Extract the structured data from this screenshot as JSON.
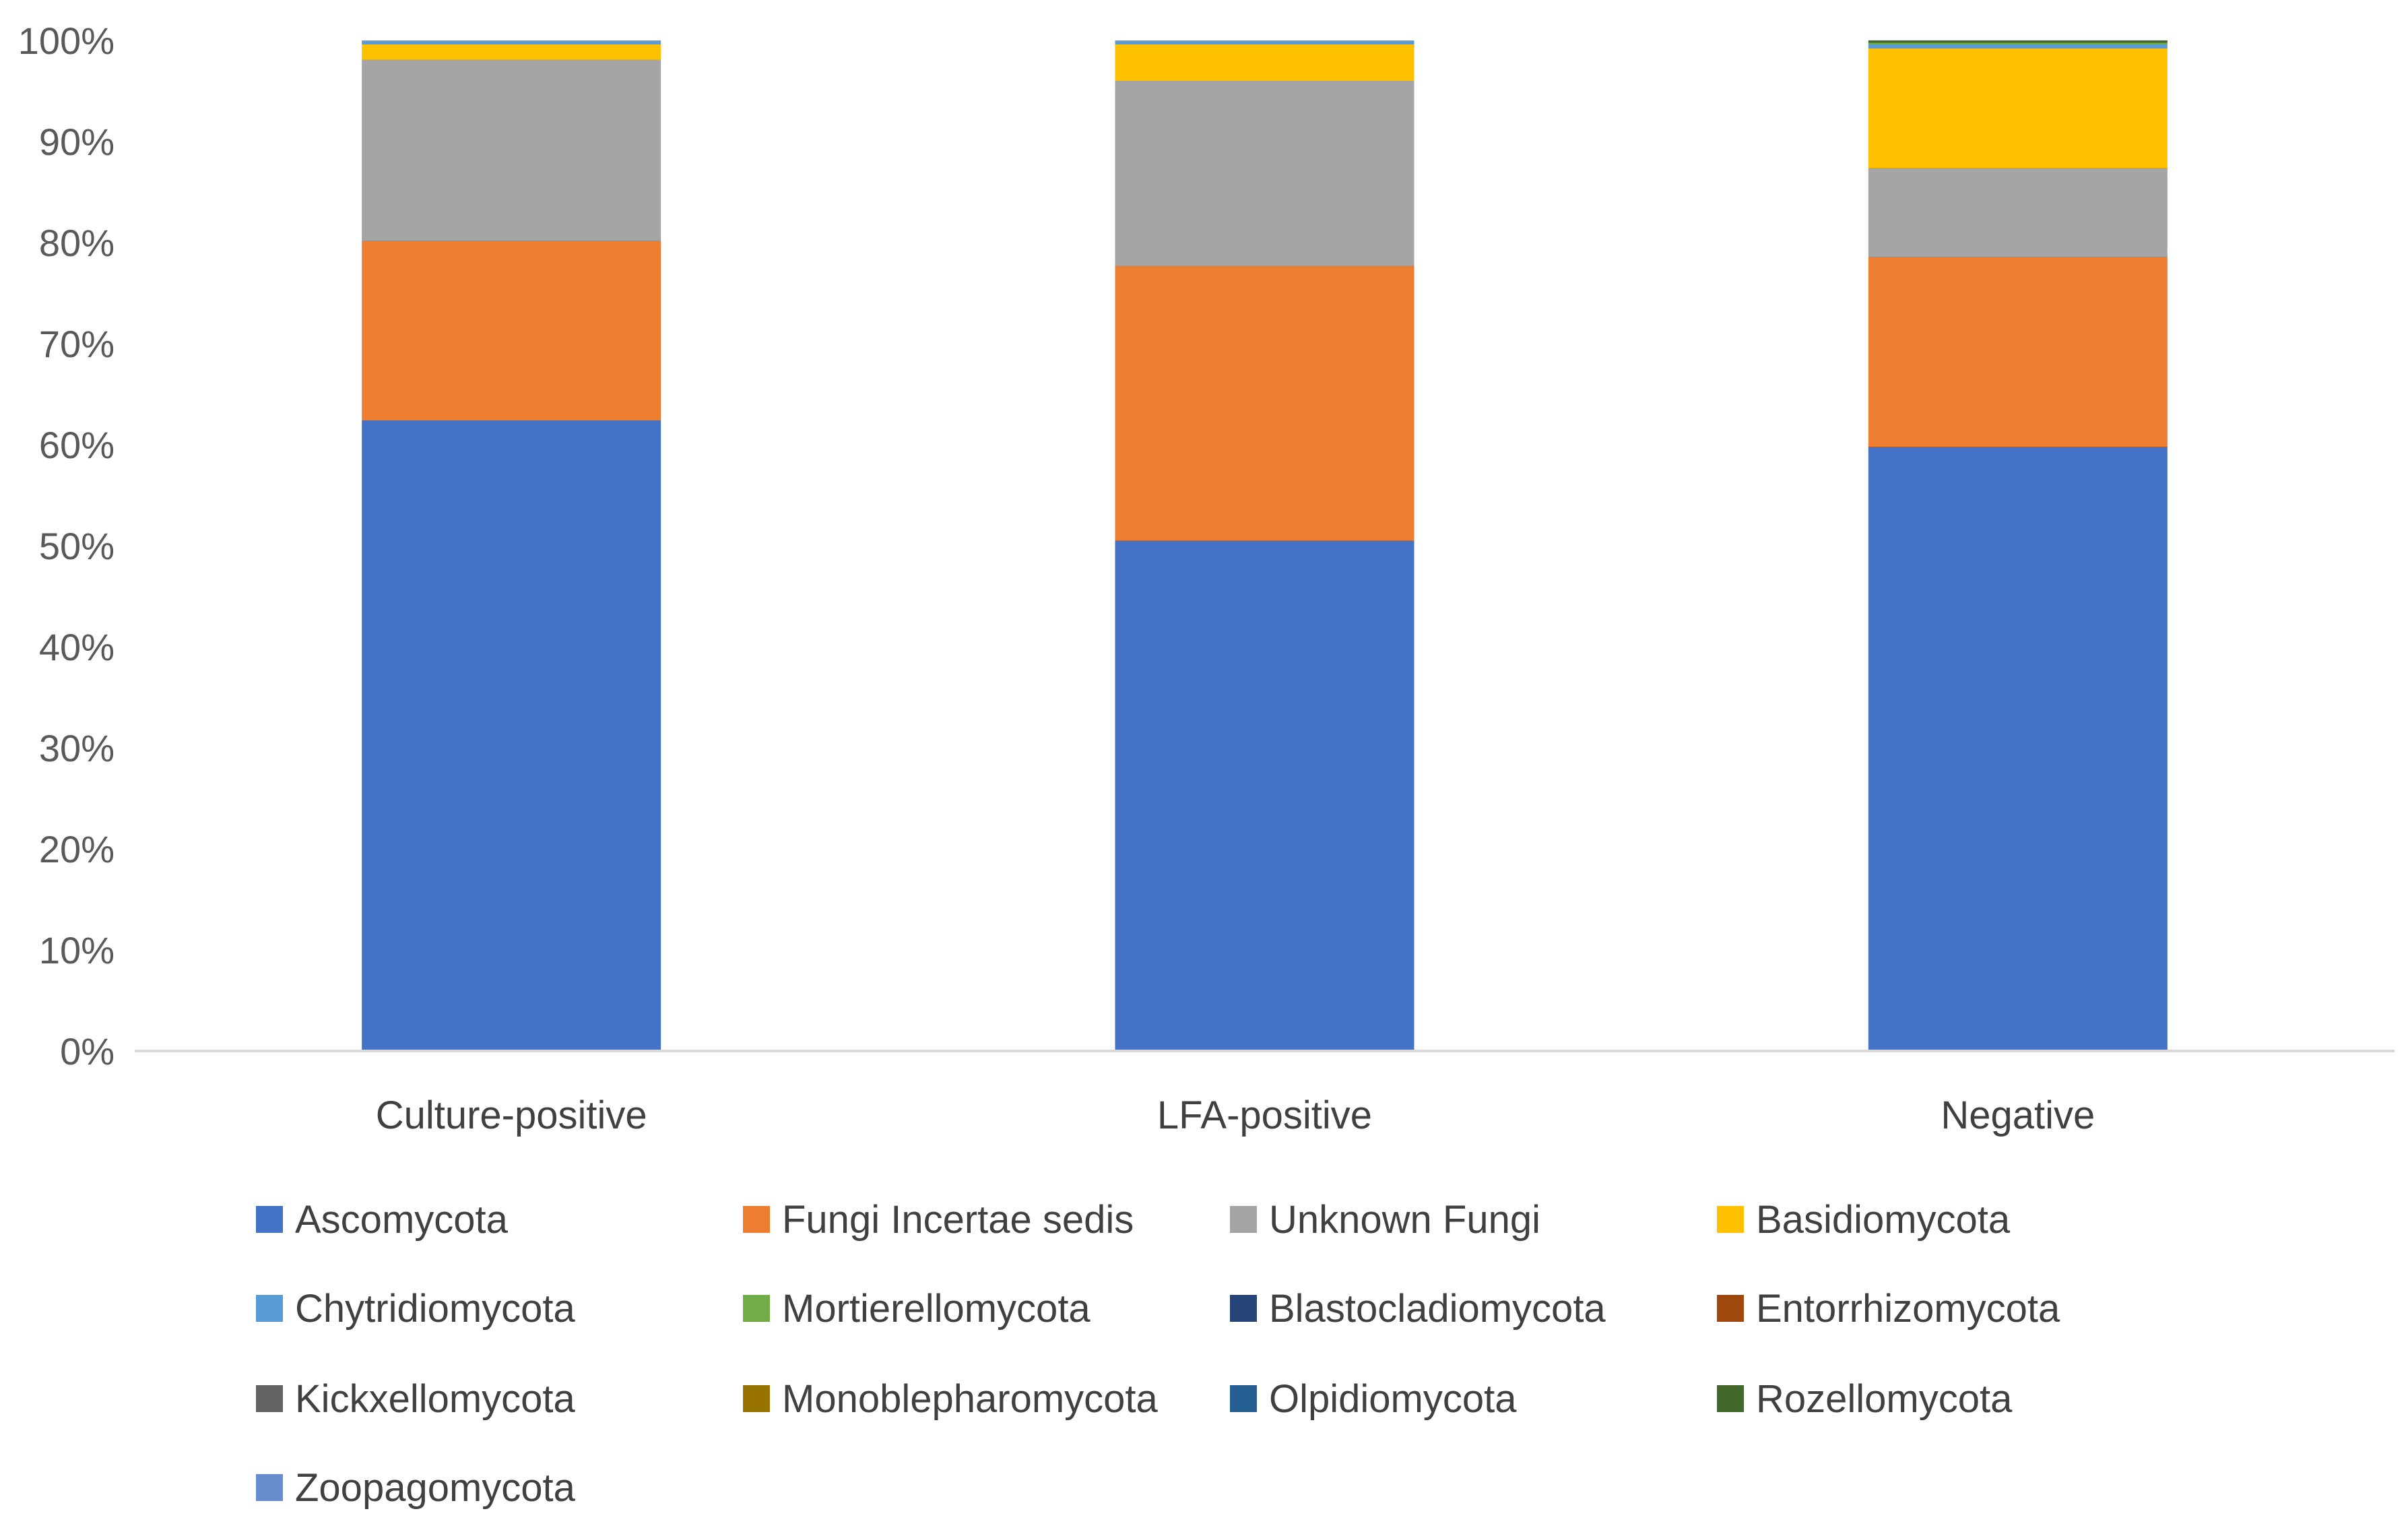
{
  "chart_data": {
    "type": "bar",
    "stacked": "percent",
    "title": "",
    "xlabel": "",
    "ylabel": "",
    "ylim": [
      0,
      100
    ],
    "y_ticks": [
      "0%",
      "10%",
      "20%",
      "30%",
      "40%",
      "50%",
      "60%",
      "70%",
      "80%",
      "90%",
      "100%"
    ],
    "grid": false,
    "legend_position": "bottom",
    "categories": [
      "Culture-positive",
      "LFA-positive",
      "Negative"
    ],
    "series": [
      {
        "name": "Ascomycota",
        "color": "#4472C4",
        "values": [
          62.4,
          50.5,
          59.8
        ]
      },
      {
        "name": "Fungi Incertae sedis",
        "color": "#ED7D31",
        "values": [
          17.8,
          27.2,
          18.8
        ]
      },
      {
        "name": "Unknown Fungi",
        "color": "#A5A5A5",
        "values": [
          17.9,
          18.3,
          8.8
        ]
      },
      {
        "name": "Basidiomycota",
        "color": "#FFC000",
        "values": [
          1.5,
          3.6,
          11.8
        ]
      },
      {
        "name": "Chytridiomycota",
        "color": "#5B9BD5",
        "values": [
          0.3,
          0.3,
          0.4
        ]
      },
      {
        "name": "Mortierellomycota",
        "color": "#70AD47",
        "values": [
          0.05,
          0.05,
          0.15
        ]
      },
      {
        "name": "Blastocladiomycota",
        "color": "#264478",
        "values": [
          0.0,
          0.0,
          0.0
        ]
      },
      {
        "name": "Entorrhizomycota",
        "color": "#9E480E",
        "values": [
          0.0,
          0.0,
          0.0
        ]
      },
      {
        "name": "Kickxellomycota",
        "color": "#636363",
        "values": [
          0.0,
          0.0,
          0.0
        ]
      },
      {
        "name": "Monoblepharomycota",
        "color": "#997300",
        "values": [
          0.0,
          0.0,
          0.0
        ]
      },
      {
        "name": "Olpidiomycota",
        "color": "#255E91",
        "values": [
          0.0,
          0.0,
          0.0
        ]
      },
      {
        "name": "Rozellomycota",
        "color": "#43682B",
        "values": [
          0.0,
          0.0,
          0.25
        ]
      },
      {
        "name": "Zoopagomycota",
        "color": "#698ED0",
        "values": [
          0.05,
          0.05,
          0.0
        ]
      }
    ]
  },
  "colors": {
    "axis_line": "#D9D9D9",
    "tick_text": "#595959",
    "label_text": "#404040"
  }
}
